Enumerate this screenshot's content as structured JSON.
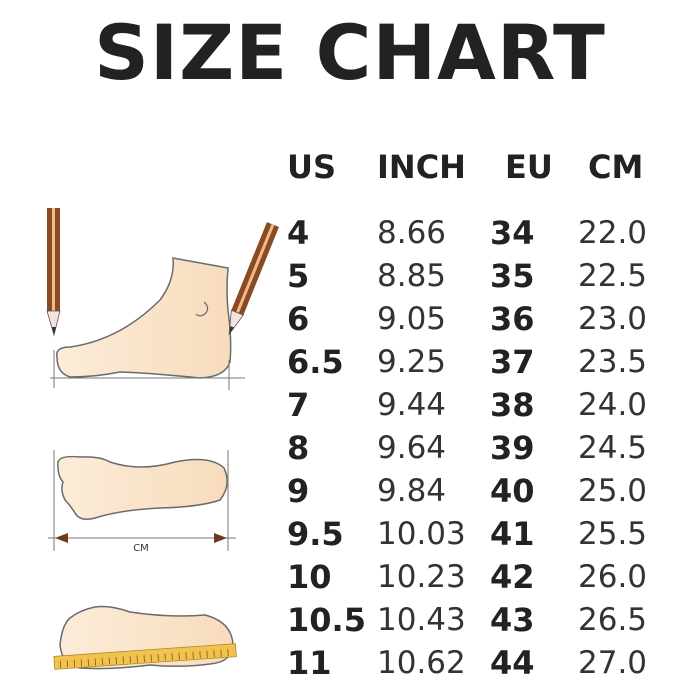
{
  "title": "SIZE CHART",
  "headers": [
    "US",
    "INCH",
    "EU",
    "CM"
  ],
  "rows": [
    [
      "4",
      "8.66",
      "34",
      "22.0"
    ],
    [
      "5",
      "8.85",
      "35",
      "22.5"
    ],
    [
      "6",
      "9.05",
      "36",
      "23.0"
    ],
    [
      "6.5",
      "9.25",
      "37",
      "23.5"
    ],
    [
      "7",
      "9.44",
      "38",
      "24.0"
    ],
    [
      "8",
      "9.64",
      "39",
      "24.5"
    ],
    [
      "9",
      "9.84",
      "40",
      "25.0"
    ],
    [
      "9.5",
      "10.03",
      "41",
      "25.5"
    ],
    [
      "10",
      "10.23",
      "42",
      "26.0"
    ],
    [
      "10.5",
      "10.43",
      "43",
      "26.5"
    ],
    [
      "11",
      "10.62",
      "44",
      "27.0"
    ]
  ],
  "illustration": {
    "measure_label": "CM"
  },
  "colors": {
    "skin": "#fbe3c4",
    "outline": "#6b6b6b",
    "pencil": "#8a4a22",
    "ruler": "#f2c24e",
    "text": "#222222"
  }
}
